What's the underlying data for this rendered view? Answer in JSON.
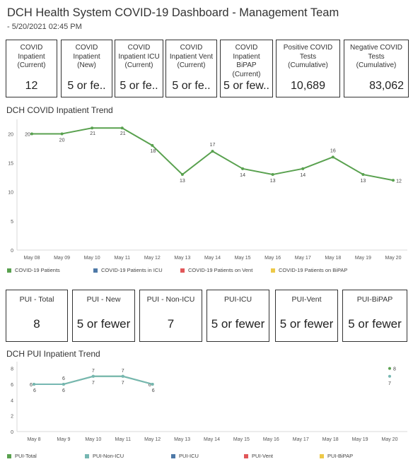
{
  "header": {
    "title": "DCH Health System COVID-19 Dashboard - Management Team",
    "subtitle": "- 5/20/2021 02:45 PM"
  },
  "kpis": [
    {
      "label": "COVID\nInpatient\n(Current)",
      "value": "12"
    },
    {
      "label": "COVID\nInpatient\n(New)",
      "value": "5 or fe.."
    },
    {
      "label": "COVID\nInpatient ICU\n(Current)",
      "value": "5 or fe.."
    },
    {
      "label": "COVID\nInpatient Vent\n(Current)",
      "value": "5 or fe.."
    },
    {
      "label": "COVID\nInpatient BiPAP\n(Current)",
      "value": "5 or few.."
    },
    {
      "label": "Positive COVID\nTests\n(Cumulative)",
      "value": "10,689"
    },
    {
      "label": "Negative COVID\nTests\n(Cumulative)",
      "value": "83,062"
    }
  ],
  "pui_kpis": [
    {
      "label": "PUI - Total",
      "value": "8"
    },
    {
      "label": "PUI - New",
      "value": "5 or fewer"
    },
    {
      "label": "PUI - Non-ICU",
      "value": "7"
    },
    {
      "label": "PUI-ICU",
      "value": "5 or fewer"
    },
    {
      "label": "PUI-Vent",
      "value": "5 or fewer"
    },
    {
      "label": "PUI-BiPAP",
      "value": "5 or fewer"
    }
  ],
  "chart_data": [
    {
      "type": "line",
      "title": "DCH COVID Inpatient Trend",
      "categories": [
        "May 08",
        "May 09",
        "May 10",
        "May 11",
        "May 12",
        "May 13",
        "May 14",
        "May 15",
        "May 16",
        "May 17",
        "May 18",
        "May 19",
        "May 20"
      ],
      "ylim": [
        0,
        22
      ],
      "yticks": [
        0,
        5,
        10,
        15,
        20
      ],
      "grid": false,
      "legend_position": "bottom",
      "series": [
        {
          "name": "COVID-19 Patients",
          "color": "#59a14f",
          "values": [
            20,
            20,
            21,
            21,
            18,
            13,
            17,
            14,
            13,
            14,
            16,
            13,
            12
          ]
        }
      ],
      "legend": [
        {
          "name": "COVID-19 Patients",
          "color": "#59a14f"
        },
        {
          "name": "COVID-19 Patients in ICU",
          "color": "#4e79a7"
        },
        {
          "name": "COVID-19 Patients on Vent",
          "color": "#e15759"
        },
        {
          "name": "COVID-19 Patients on BiPAP",
          "color": "#edc948"
        }
      ]
    },
    {
      "type": "line",
      "title": "DCH PUI Inpatient Trend",
      "categories": [
        "May 8",
        "May 9",
        "May 10",
        "May 11",
        "May 12",
        "May 13",
        "May 14",
        "May 15",
        "May 16",
        "May 17",
        "May 18",
        "May 19",
        "May 20"
      ],
      "ylim": [
        0,
        8.5
      ],
      "yticks": [
        0,
        2,
        4,
        6,
        8
      ],
      "grid": false,
      "legend_position": "bottom",
      "series": [
        {
          "name": "PUI-Total",
          "color": "#59a14f",
          "values": [
            6,
            6,
            7,
            7,
            6,
            null,
            null,
            null,
            null,
            null,
            null,
            null,
            8
          ]
        },
        {
          "name": "PUI-Non-ICU",
          "color": "#76b7b2",
          "values": [
            6,
            6,
            7,
            7,
            6,
            null,
            null,
            null,
            null,
            null,
            null,
            null,
            7
          ]
        }
      ],
      "legend": [
        {
          "name": "PUI-Total",
          "color": "#59a14f"
        },
        {
          "name": "PUI-Non-ICU",
          "color": "#76b7b2"
        },
        {
          "name": "PUI-ICU",
          "color": "#4e79a7"
        },
        {
          "name": "PUI-Vent",
          "color": "#e15759"
        },
        {
          "name": "PUI-BiPAP",
          "color": "#edc948"
        }
      ]
    }
  ]
}
